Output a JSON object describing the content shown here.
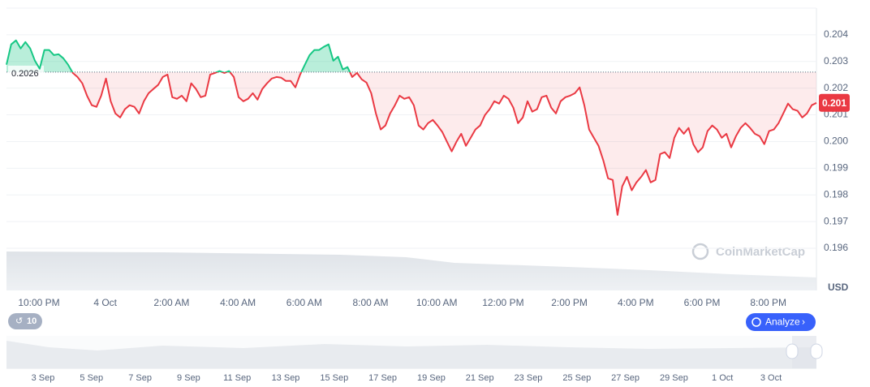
{
  "chart_data": {
    "type": "line",
    "values": [
      0.20288,
      0.20364,
      0.20379,
      0.20349,
      0.20373,
      0.20349,
      0.20303,
      0.20273,
      0.20343,
      0.20343,
      0.20324,
      0.20327,
      0.20312,
      0.20288,
      0.20257,
      0.20242,
      0.20218,
      0.20172,
      0.20136,
      0.2013,
      0.20172,
      0.20236,
      0.20151,
      0.20105,
      0.2009,
      0.20121,
      0.20136,
      0.2013,
      0.20105,
      0.20151,
      0.20181,
      0.20197,
      0.20212,
      0.20242,
      0.20251,
      0.20166,
      0.2016,
      0.20172,
      0.20151,
      0.20218,
      0.20197,
      0.20166,
      0.20172,
      0.20251,
      0.20257,
      0.20264,
      0.20257,
      0.20264,
      0.20242,
      0.20166,
      0.20151,
      0.2016,
      0.20181,
      0.20157,
      0.20197,
      0.20218,
      0.20236,
      0.20242,
      0.20239,
      0.20227,
      0.20227,
      0.20203,
      0.20251,
      0.20288,
      0.20324,
      0.20343,
      0.20343,
      0.20355,
      0.20364,
      0.20303,
      0.20318,
      0.2027,
      0.20279,
      0.20242,
      0.20257,
      0.20233,
      0.20221,
      0.20181,
      0.20105,
      0.20045,
      0.2006,
      0.20105,
      0.20136,
      0.20172,
      0.2016,
      0.20166,
      0.20136,
      0.2006,
      0.20045,
      0.20069,
      0.20081,
      0.2006,
      0.20036,
      0.19999,
      0.19963,
      0.19999,
      0.20029,
      0.19984,
      0.20014,
      0.20045,
      0.2006,
      0.20099,
      0.20121,
      0.20151,
      0.20142,
      0.20172,
      0.2016,
      0.20127,
      0.20069,
      0.2009,
      0.20151,
      0.20112,
      0.20121,
      0.20166,
      0.20172,
      0.20127,
      0.20105,
      0.20151,
      0.20166,
      0.20172,
      0.20181,
      0.20203,
      0.20136,
      0.20045,
      0.20014,
      0.19984,
      0.19929,
      0.19862,
      0.19856,
      0.19725,
      0.19832,
      0.19868,
      0.19817,
      0.19847,
      0.19868,
      0.19893,
      0.19847,
      0.19856,
      0.19953,
      0.1996,
      0.19938,
      0.20014,
      0.20051,
      0.20029,
      0.20051,
      0.1999,
      0.1996,
      0.19978,
      0.20039,
      0.2006,
      0.20045,
      0.20014,
      0.20029,
      0.19978,
      0.2002,
      0.20051,
      0.20069,
      0.20051,
      0.20029,
      0.2002,
      0.1999,
      0.20039,
      0.20045,
      0.20069,
      0.20105,
      0.20142,
      0.20121,
      0.20115,
      0.2009,
      0.20105,
      0.20136,
      0.20145
    ],
    "colors": {
      "up": "#16c784",
      "down": "#ea3943"
    },
    "reference": 0.2026,
    "last_price_label": "0.201",
    "ylim": [
      0.196,
      0.205
    ],
    "yticks": [
      0.196,
      0.197,
      0.198,
      0.199,
      0.2,
      0.201,
      0.202,
      0.203,
      0.204
    ],
    "ytick_labels": [
      "0.196",
      "0.197",
      "0.198",
      "0.199",
      "0.200",
      "0.201",
      "0.202",
      "0.203",
      "0.204"
    ],
    "currency": "USD",
    "watermark": "CoinMarketCap",
    "xtick_labels": [
      "10:00 PM",
      "4 Oct",
      "2:00 AM",
      "4:00 AM",
      "6:00 AM",
      "8:00 AM",
      "10:00 AM",
      "12:00 PM",
      "2:00 PM",
      "4:00 PM",
      "6:00 PM",
      "8:00 PM"
    ],
    "navigator_labels": [
      "3 Sep",
      "5 Sep",
      "7 Sep",
      "9 Sep",
      "11 Sep",
      "13 Sep",
      "15 Sep",
      "17 Sep",
      "19 Sep",
      "21 Sep",
      "23 Sep",
      "25 Sep",
      "27 Sep",
      "29 Sep",
      "1 Oct",
      "3 Oct"
    ],
    "history_badge": "10",
    "analyze_button": "Analyze"
  }
}
